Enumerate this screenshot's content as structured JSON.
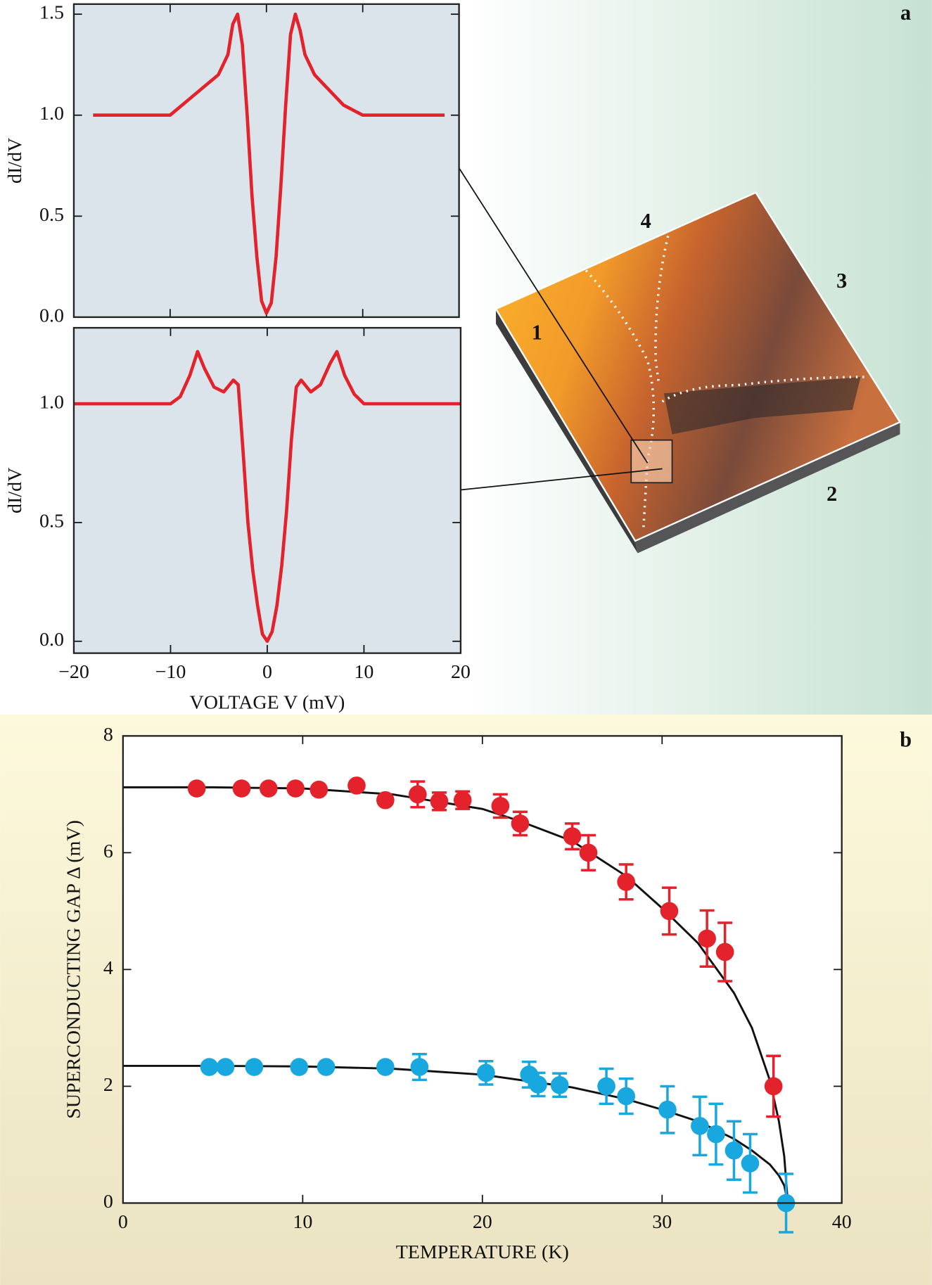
{
  "chart_data": [
    {
      "type": "line",
      "panel_label": "a",
      "ylabel": "dI/dV",
      "background": "#dbe4ea",
      "color": "#e3222b",
      "annotations": [
        "1",
        "2",
        "3",
        "4"
      ],
      "x": [
        -18,
        -16,
        -14,
        -12,
        -10,
        -8,
        -6,
        -5,
        -4,
        -3.5,
        -3,
        -2.5,
        -2,
        -1.5,
        -1,
        -0.5,
        0,
        0.5,
        1,
        1.5,
        2,
        2.5,
        3,
        3.5,
        4,
        5,
        6,
        8,
        10,
        12,
        14,
        16,
        18.5
      ],
      "values": [
        1.0,
        1.0,
        1.0,
        1.0,
        1.0,
        1.08,
        1.16,
        1.2,
        1.3,
        1.45,
        1.5,
        1.35,
        1.0,
        0.6,
        0.3,
        0.08,
        0.02,
        0.07,
        0.3,
        0.65,
        1.05,
        1.4,
        1.5,
        1.42,
        1.3,
        1.2,
        1.15,
        1.05,
        1.0,
        1.0,
        1.0,
        1.0,
        1.0
      ],
      "xlim": [
        -20,
        20
      ],
      "xticks": [
        -20,
        -10,
        0,
        10,
        20
      ],
      "xtick_labels": false,
      "ylim": [
        0,
        1.55
      ],
      "yticks": [
        {
          "value": 0,
          "label": "0.0"
        },
        {
          "value": 0.5,
          "label": "0.5"
        },
        {
          "value": 1,
          "label": "1.0"
        },
        {
          "value": 1.5,
          "label": "1.5"
        }
      ]
    },
    {
      "type": "line",
      "ylabel": "dI/dV",
      "xlabel": "VOLTAGE V (mV)",
      "background": "#dbe4ea",
      "color": "#e3222b",
      "x": [
        -20,
        -18,
        -16,
        -14,
        -12,
        -10,
        -9,
        -8,
        -7.2,
        -6.5,
        -5.5,
        -4.5,
        -3.5,
        -3,
        -2.5,
        -2,
        -1.5,
        -1,
        -0.5,
        0,
        0.5,
        1,
        1.5,
        2,
        2.5,
        3,
        3.5,
        4.5,
        5.5,
        6.5,
        7.2,
        8,
        9,
        10,
        12,
        14,
        16,
        18,
        20
      ],
      "values": [
        1.0,
        1.0,
        1.0,
        1.0,
        1.0,
        1.0,
        1.03,
        1.12,
        1.22,
        1.15,
        1.07,
        1.05,
        1.1,
        1.08,
        0.8,
        0.5,
        0.3,
        0.15,
        0.03,
        0.0,
        0.04,
        0.15,
        0.32,
        0.55,
        0.85,
        1.07,
        1.1,
        1.05,
        1.08,
        1.17,
        1.22,
        1.12,
        1.04,
        1.0,
        1.0,
        1.0,
        1.0,
        1.0,
        1.0
      ],
      "xlim": [
        -20,
        20
      ],
      "xticks": [
        {
          "value": -20,
          "label": "−20"
        },
        {
          "value": -10,
          "label": "−10"
        },
        0,
        10,
        20
      ],
      "xtick_labels": true,
      "ylim": [
        -0.05,
        1.32
      ],
      "yticks": [
        {
          "value": 0,
          "label": "0.0"
        },
        {
          "value": 0.5,
          "label": "0.5"
        },
        {
          "value": 1,
          "label": "1.0"
        }
      ]
    },
    {
      "type": "scatter",
      "panel_label": "b",
      "xlabel": "TEMPERATURE (K)",
      "ylabel": "SUPERCONDUCTING GAP Δ (mV)",
      "background": "#ffffff",
      "xlim": [
        0,
        40
      ],
      "xticks": [
        0,
        10,
        20,
        30,
        40
      ],
      "xtick_labels": true,
      "ylim": [
        0,
        8
      ],
      "yticks": [
        0,
        2,
        4,
        6,
        8
      ],
      "series": [
        {
          "color": "#e3222b",
          "x": [
            4.1,
            6.6,
            8.1,
            9.6,
            10.9,
            13,
            14.6,
            16.4,
            17.6,
            18.9,
            21,
            22.1,
            25,
            25.9,
            28,
            30.4,
            32.5,
            33.5,
            36.2
          ],
          "values": [
            7.1,
            7.1,
            7.1,
            7.1,
            7.08,
            7.15,
            6.9,
            7.0,
            6.88,
            6.9,
            6.8,
            6.5,
            6.28,
            6.0,
            5.5,
            5.0,
            4.53,
            4.3,
            2.0
          ],
          "errors": [
            null,
            null,
            null,
            null,
            null,
            null,
            null,
            0.22,
            0.15,
            0.15,
            0.2,
            0.2,
            0.22,
            0.3,
            0.3,
            0.4,
            0.48,
            0.5,
            0.52
          ]
        },
        {
          "color": "#19a7df",
          "x": [
            4.8,
            5.7,
            7.3,
            9.8,
            11.3,
            14.6,
            16.5,
            20.2,
            22.6,
            23.1,
            24.3,
            26.9,
            28.0,
            30.3,
            32.1,
            33.0,
            34.0,
            34.9,
            36.9
          ],
          "values": [
            2.33,
            2.33,
            2.33,
            2.33,
            2.33,
            2.33,
            2.33,
            2.23,
            2.2,
            2.03,
            2.02,
            2.0,
            1.83,
            1.6,
            1.32,
            1.18,
            0.9,
            0.68,
            0.0
          ],
          "errors": [
            null,
            null,
            null,
            null,
            null,
            null,
            0.22,
            0.2,
            0.22,
            0.2,
            0.2,
            0.3,
            0.3,
            0.4,
            0.5,
            0.52,
            0.5,
            0.5,
            0.5
          ]
        }
      ],
      "fits": [
        {
          "color": "#111111",
          "x": [
            0,
            5,
            10,
            15,
            20,
            22,
            25,
            28,
            30,
            32,
            34,
            35,
            36,
            36.5,
            36.8,
            37
          ],
          "values": [
            7.12,
            7.12,
            7.1,
            7.0,
            6.75,
            6.55,
            6.2,
            5.6,
            5.05,
            4.45,
            3.6,
            3.0,
            2.1,
            1.4,
            0.8,
            0
          ]
        },
        {
          "color": "#111111",
          "x": [
            0,
            5,
            10,
            15,
            20,
            25,
            28,
            30,
            32,
            34,
            35,
            36,
            36.5,
            36.8,
            37
          ],
          "values": [
            2.35,
            2.35,
            2.34,
            2.3,
            2.2,
            1.98,
            1.78,
            1.6,
            1.4,
            1.1,
            0.9,
            0.66,
            0.47,
            0.3,
            0
          ]
        }
      ]
    }
  ]
}
